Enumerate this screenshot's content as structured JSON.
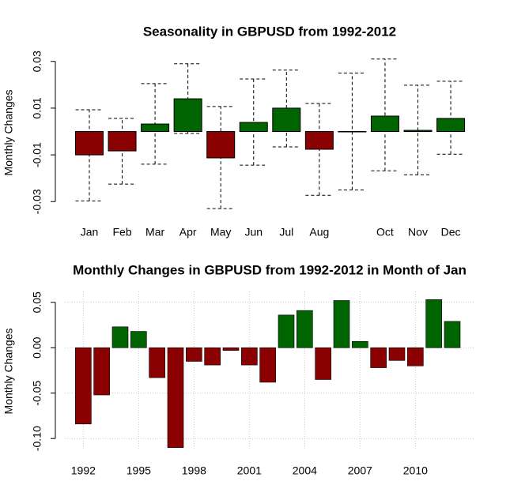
{
  "chart_data": [
    {
      "type": "bar-range",
      "title": "Seasonality in GBPUSD from 1992-2012",
      "y_label": "Monthly Changes",
      "categories": [
        "Jan",
        "Feb",
        "Mar",
        "Apr",
        "May",
        "Jun",
        "Jul",
        "Aug",
        null,
        "Oct",
        "Nov",
        "Dec"
      ],
      "values": [
        -0.01,
        -0.0083,
        0.0032,
        0.014,
        -0.0113,
        0.0039,
        0.01,
        -0.0076,
        0.0,
        0.0066,
        0.0005,
        0.0056
      ],
      "low": [
        -0.0297,
        -0.0225,
        -0.014,
        -0.0008,
        -0.033,
        -0.0144,
        -0.0066,
        -0.0273,
        -0.025,
        -0.0168,
        -0.0185,
        -0.0097
      ],
      "high": [
        0.0093,
        0.0056,
        0.0205,
        0.029,
        0.0107,
        0.0225,
        0.0263,
        0.012,
        0.025,
        0.031,
        0.0198,
        0.0215
      ],
      "positive_color": "#006400",
      "negative_color": "#8b0000",
      "ylim": [
        -0.036,
        0.036
      ],
      "yticks": [
        -0.03,
        -0.01,
        0.01,
        0.03
      ]
    },
    {
      "type": "bar",
      "title": "Monthly Changes in GBPUSD from 1992-2012 in Month of Jan",
      "y_label": "Monthly Changes",
      "x": [
        1992,
        1993,
        1994,
        1995,
        1996,
        1997,
        1998,
        1999,
        2000,
        2001,
        2002,
        2003,
        2004,
        2005,
        2006,
        2007,
        2008,
        2009,
        2010,
        2011,
        2012
      ],
      "values": [
        -0.084,
        -0.052,
        0.023,
        0.018,
        -0.033,
        -0.11,
        -0.015,
        -0.019,
        -0.003,
        -0.019,
        -0.038,
        0.036,
        0.041,
        -0.035,
        0.052,
        0.007,
        -0.022,
        -0.014,
        -0.02,
        0.053,
        0.029
      ],
      "positive_color": "#006400",
      "negative_color": "#8b0000",
      "xlim": [
        1991,
        2013.2
      ],
      "xticks": [
        1992,
        1995,
        1998,
        2001,
        2004,
        2007,
        2010
      ],
      "ylim": [
        -0.112,
        0.062
      ],
      "yticks": [
        {
          "value": -0.1,
          "label": "-0.10"
        },
        -0.05,
        {
          "value": 0,
          "label": "0.00"
        },
        0.05
      ],
      "grid": true
    }
  ]
}
